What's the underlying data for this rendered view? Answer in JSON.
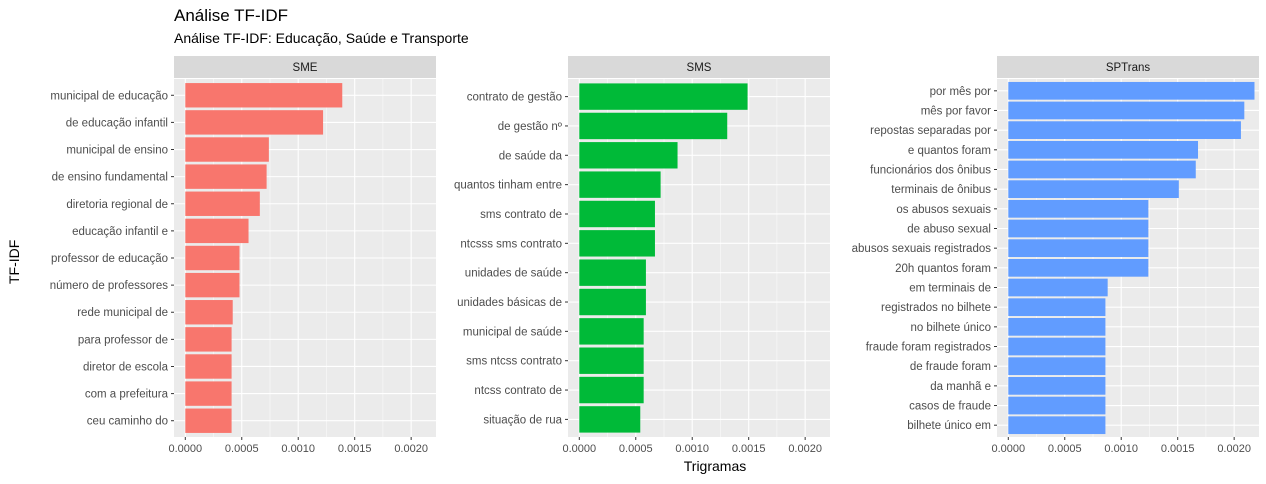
{
  "title": "Análise TF-IDF",
  "subtitle": "Análise TF-IDF: Educação, Saúde e Transporte",
  "ylabel": "TF-IDF",
  "xlabel": "Trigramas",
  "colors": {
    "panel_bg": "#ebebeb",
    "strip_bg": "#d9d9d9",
    "grid_major": "#ffffff",
    "SME": "#f8766d",
    "SMS": "#00ba38",
    "SPTrans": "#619cff"
  },
  "chart_data": {
    "type": "bar",
    "orientation": "horizontal",
    "facets": true,
    "xlim": [
      -0.0001,
      0.00222
    ],
    "xticks": [
      0.0,
      0.0005,
      0.001,
      0.0015,
      0.002
    ],
    "xtick_labels": [
      "0.0000",
      "0.0005",
      "0.0010",
      "0.0015",
      "0.0020"
    ],
    "panels": [
      {
        "name": "SME",
        "color_key": "SME",
        "categories": [
          "municipal de educação",
          "de educação infantil",
          "municipal de ensino",
          "de ensino fundamental",
          "diretoria regional de",
          "educação infantil e",
          "professor de educação",
          "número de professores",
          "rede municipal de",
          "para professor de",
          "diretor de escola",
          "com a prefeitura",
          "ceu caminho do"
        ],
        "values": [
          0.00139,
          0.00122,
          0.00074,
          0.00072,
          0.00066,
          0.00056,
          0.00048,
          0.00048,
          0.00042,
          0.00041,
          0.00041,
          0.00041,
          0.00041
        ]
      },
      {
        "name": "SMS",
        "color_key": "SMS",
        "categories": [
          "contrato de gestão",
          "de gestão nº",
          "de saúde da",
          "quantos tinham entre",
          "sms contrato de",
          "ntcsss sms contrato",
          "unidades de saúde",
          "unidades básicas de",
          "municipal de saúde",
          "sms ntcss contrato",
          "ntcss contrato de",
          "situação de rua"
        ],
        "values": [
          0.00149,
          0.00131,
          0.00087,
          0.00072,
          0.00067,
          0.00067,
          0.00059,
          0.00059,
          0.00057,
          0.00057,
          0.00057,
          0.00054
        ]
      },
      {
        "name": "SPTrans",
        "color_key": "SPTrans",
        "categories": [
          "por mês por",
          "mês por favor",
          "repostas separadas por",
          "e quantos foram",
          "funcionários dos ônibus",
          "terminais de ônibus",
          "os abusos sexuais",
          "de abuso sexual",
          "abusos sexuais registrados",
          "20h quantos foram",
          "em terminais de",
          "registrados no bilhete",
          "no bilhete único",
          "fraude foram registrados",
          "de fraude foram",
          "da manhã e",
          "casos de fraude",
          "bilhete único em"
        ],
        "values": [
          0.00218,
          0.00209,
          0.00206,
          0.00168,
          0.00166,
          0.00151,
          0.00124,
          0.00124,
          0.00124,
          0.00124,
          0.00088,
          0.00086,
          0.00086,
          0.00086,
          0.00086,
          0.00086,
          0.00086,
          0.00086
        ]
      }
    ]
  }
}
